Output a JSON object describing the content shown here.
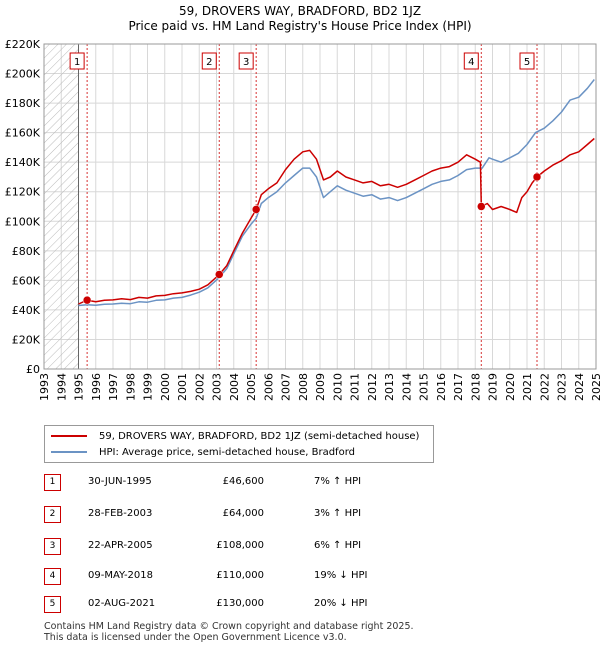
{
  "title": "59, DROVERS WAY, BRADFORD, BD2 1JZ",
  "subtitle": "Price paid vs. HM Land Registry's House Price Index (HPI)",
  "colors": {
    "price": "#cc0000",
    "hpi": "#6b93c4",
    "grid": "#d8d8d8",
    "marker_border": "#cc0000"
  },
  "chart_data": {
    "type": "line",
    "xlim": [
      1993,
      2025
    ],
    "ylim": [
      0,
      220000
    ],
    "x_ticks": [
      "1993",
      "1994",
      "1995",
      "1996",
      "1997",
      "1998",
      "1999",
      "2000",
      "2001",
      "2002",
      "2003",
      "2004",
      "2005",
      "2006",
      "2007",
      "2008",
      "2009",
      "2010",
      "2011",
      "2012",
      "2013",
      "2014",
      "2015",
      "2016",
      "2017",
      "2018",
      "2019",
      "2020",
      "2021",
      "2022",
      "2023",
      "2024",
      "2025"
    ],
    "y_ticks": [
      {
        "value": 0,
        "label": "£0"
      },
      {
        "value": 20000,
        "label": "£20K"
      },
      {
        "value": 40000,
        "label": "£40K"
      },
      {
        "value": 60000,
        "label": "£60K"
      },
      {
        "value": 80000,
        "label": "£80K"
      },
      {
        "value": 100000,
        "label": "£100K"
      },
      {
        "value": 120000,
        "label": "£120K"
      },
      {
        "value": 140000,
        "label": "£140K"
      },
      {
        "value": 160000,
        "label": "£160K"
      },
      {
        "value": 180000,
        "label": "£180K"
      },
      {
        "value": 200000,
        "label": "£200K"
      },
      {
        "value": 220000,
        "label": "£220K"
      }
    ],
    "hatched_until": 1995.0,
    "series": [
      {
        "name": "59, DROVERS WAY, BRADFORD, BD2 1JZ (semi-detached house)",
        "color": "#cc0000",
        "points": [
          [
            1995.0,
            44000
          ],
          [
            1995.5,
            46600
          ],
          [
            1996.0,
            45500
          ],
          [
            1996.5,
            46500
          ],
          [
            1997.0,
            46800
          ],
          [
            1997.5,
            47500
          ],
          [
            1998.0,
            47000
          ],
          [
            1998.5,
            48500
          ],
          [
            1999.0,
            48000
          ],
          [
            1999.5,
            49500
          ],
          [
            2000.0,
            49800
          ],
          [
            2000.5,
            51000
          ],
          [
            2001.0,
            51500
          ],
          [
            2001.5,
            52500
          ],
          [
            2002.0,
            54000
          ],
          [
            2002.5,
            57000
          ],
          [
            2003.16,
            64000
          ],
          [
            2003.6,
            70000
          ],
          [
            2004.0,
            80000
          ],
          [
            2004.5,
            92000
          ],
          [
            2005.0,
            102000
          ],
          [
            2005.3,
            108000
          ],
          [
            2005.6,
            118000
          ],
          [
            2006.0,
            122000
          ],
          [
            2006.5,
            126000
          ],
          [
            2007.0,
            135000
          ],
          [
            2007.5,
            142000
          ],
          [
            2008.0,
            147000
          ],
          [
            2008.4,
            148000
          ],
          [
            2008.8,
            142000
          ],
          [
            2009.2,
            128000
          ],
          [
            2009.6,
            130000
          ],
          [
            2010.0,
            134000
          ],
          [
            2010.5,
            130000
          ],
          [
            2011.0,
            128000
          ],
          [
            2011.5,
            126000
          ],
          [
            2012.0,
            127000
          ],
          [
            2012.5,
            124000
          ],
          [
            2013.0,
            125000
          ],
          [
            2013.5,
            123000
          ],
          [
            2014.0,
            125000
          ],
          [
            2014.5,
            128000
          ],
          [
            2015.0,
            131000
          ],
          [
            2015.5,
            134000
          ],
          [
            2016.0,
            136000
          ],
          [
            2016.5,
            137000
          ],
          [
            2017.0,
            140000
          ],
          [
            2017.5,
            145000
          ],
          [
            2018.0,
            142000
          ],
          [
            2018.3,
            140000
          ],
          [
            2018.35,
            110000
          ],
          [
            2018.7,
            112000
          ],
          [
            2019.0,
            108000
          ],
          [
            2019.5,
            110000
          ],
          [
            2020.0,
            108000
          ],
          [
            2020.4,
            106000
          ],
          [
            2020.7,
            116000
          ],
          [
            2021.0,
            120000
          ],
          [
            2021.3,
            126000
          ],
          [
            2021.58,
            130000
          ],
          [
            2022.0,
            134000
          ],
          [
            2022.5,
            138000
          ],
          [
            2023.0,
            141000
          ],
          [
            2023.5,
            145000
          ],
          [
            2024.0,
            147000
          ],
          [
            2024.5,
            152000
          ],
          [
            2024.9,
            156000
          ]
        ]
      },
      {
        "name": "HPI: Average price, semi-detached house, Bradford",
        "color": "#6b93c4",
        "points": [
          [
            1995.0,
            43000
          ],
          [
            1995.5,
            43500
          ],
          [
            1996.0,
            43200
          ],
          [
            1996.5,
            43800
          ],
          [
            1997.0,
            44000
          ],
          [
            1997.5,
            44500
          ],
          [
            1998.0,
            44200
          ],
          [
            1998.5,
            45500
          ],
          [
            1999.0,
            45200
          ],
          [
            1999.5,
            46500
          ],
          [
            2000.0,
            46800
          ],
          [
            2000.5,
            48000
          ],
          [
            2001.0,
            48500
          ],
          [
            2001.5,
            50000
          ],
          [
            2002.0,
            52000
          ],
          [
            2002.5,
            55000
          ],
          [
            2003.16,
            62000
          ],
          [
            2003.6,
            68000
          ],
          [
            2004.0,
            78000
          ],
          [
            2004.5,
            90000
          ],
          [
            2005.0,
            98000
          ],
          [
            2005.3,
            102000
          ],
          [
            2005.6,
            112000
          ],
          [
            2006.0,
            116000
          ],
          [
            2006.5,
            120000
          ],
          [
            2007.0,
            126000
          ],
          [
            2007.5,
            131000
          ],
          [
            2008.0,
            136000
          ],
          [
            2008.4,
            136000
          ],
          [
            2008.8,
            130000
          ],
          [
            2009.2,
            116000
          ],
          [
            2009.6,
            120000
          ],
          [
            2010.0,
            124000
          ],
          [
            2010.5,
            121000
          ],
          [
            2011.0,
            119000
          ],
          [
            2011.5,
            117000
          ],
          [
            2012.0,
            118000
          ],
          [
            2012.5,
            115000
          ],
          [
            2013.0,
            116000
          ],
          [
            2013.5,
            114000
          ],
          [
            2014.0,
            116000
          ],
          [
            2014.5,
            119000
          ],
          [
            2015.0,
            122000
          ],
          [
            2015.5,
            125000
          ],
          [
            2016.0,
            127000
          ],
          [
            2016.5,
            128000
          ],
          [
            2017.0,
            131000
          ],
          [
            2017.5,
            135000
          ],
          [
            2018.0,
            136000
          ],
          [
            2018.4,
            136000
          ],
          [
            2018.8,
            143000
          ],
          [
            2019.0,
            142000
          ],
          [
            2019.5,
            140000
          ],
          [
            2020.0,
            143000
          ],
          [
            2020.5,
            146000
          ],
          [
            2021.0,
            152000
          ],
          [
            2021.5,
            160000
          ],
          [
            2022.0,
            163000
          ],
          [
            2022.5,
            168000
          ],
          [
            2023.0,
            174000
          ],
          [
            2023.5,
            182000
          ],
          [
            2024.0,
            184000
          ],
          [
            2024.5,
            190000
          ],
          [
            2024.9,
            196000
          ]
        ]
      }
    ],
    "sales": [
      {
        "num": "1",
        "x": 1995.5,
        "price": 46600
      },
      {
        "num": "2",
        "x": 2003.16,
        "price": 64000
      },
      {
        "num": "3",
        "x": 2005.3,
        "price": 108000
      },
      {
        "num": "4",
        "x": 2018.35,
        "price": 110000
      },
      {
        "num": "5",
        "x": 2021.58,
        "price": 130000
      }
    ]
  },
  "legend": {
    "price_label": "59, DROVERS WAY, BRADFORD, BD2 1JZ (semi-detached house)",
    "hpi_label": "HPI: Average price, semi-detached house, Bradford"
  },
  "sales_table": [
    {
      "num": "1",
      "date": "30-JUN-1995",
      "price": "£46,600",
      "hpi": "7% ↑ HPI"
    },
    {
      "num": "2",
      "date": "28-FEB-2003",
      "price": "£64,000",
      "hpi": "3% ↑ HPI"
    },
    {
      "num": "3",
      "date": "22-APR-2005",
      "price": "£108,000",
      "hpi": "6% ↑ HPI"
    },
    {
      "num": "4",
      "date": "09-MAY-2018",
      "price": "£110,000",
      "hpi": "19% ↓ HPI"
    },
    {
      "num": "5",
      "date": "02-AUG-2021",
      "price": "£130,000",
      "hpi": "20% ↓ HPI"
    }
  ],
  "footer": {
    "line1": "Contains HM Land Registry data © Crown copyright and database right 2025.",
    "line2": "This data is licensed under the Open Government Licence v3.0."
  }
}
